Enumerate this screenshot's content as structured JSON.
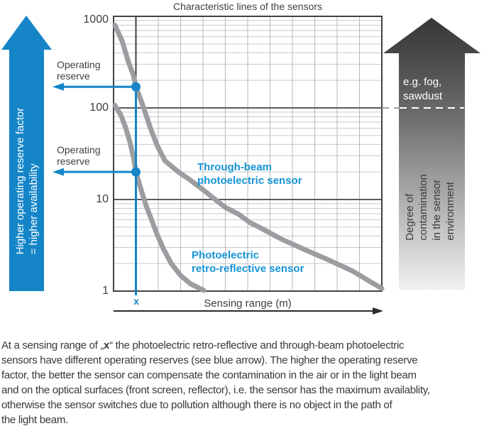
{
  "title": "Characteristic lines of the sensors",
  "colors": {
    "blue": "#1585c8",
    "label_blue": "#1493d6",
    "curve_gray": "#9b9da0",
    "grid_minor": "#c6c9cb",
    "grid_major": "#595c5e",
    "border": "#404346",
    "arrow_dark": "#3a3a3a",
    "arrow_light": "#f0f0f0"
  },
  "left_arrow": {
    "label": "Higher operating reserve factor\n= higher availability"
  },
  "right_arrow": {
    "example_label": "e.g. fog,\nsawdust",
    "label": "Degree of contamination\nin the sensor environment"
  },
  "plot": {
    "y_ticks": [
      "1000",
      "100",
      "10",
      "1"
    ],
    "x_axis_label": "Sensing range (m)",
    "x_marker_label": "x",
    "operating_reserve_label": "Operating reserve",
    "series_labels": {
      "through_beam": "Through-beam\nphotoelectric sensor",
      "retro_reflective": "Photoelectric\nretro-reflective sensor"
    }
  },
  "chart_data": {
    "type": "line",
    "title": "Characteristic lines of the sensors",
    "xlabel": "Sensing range (m)",
    "ylabel": "Operating reserve factor",
    "x_range": [
      0,
      12
    ],
    "y_scale": "log",
    "y_range": [
      1,
      1000
    ],
    "y_ticks": [
      1,
      10,
      100,
      1000
    ],
    "grid": true,
    "legend_position": "inline-labels",
    "series": [
      {
        "name": "Through-beam photoelectric sensor",
        "points": [
          [
            0.06,
            800
          ],
          [
            0.38,
            540
          ],
          [
            0.67,
            315
          ],
          [
            0.89,
            227
          ],
          [
            1.0,
            170
          ],
          [
            1.35,
            100
          ],
          [
            1.65,
            60
          ],
          [
            1.95,
            39
          ],
          [
            2.3,
            26.5
          ],
          [
            2.9,
            20
          ],
          [
            3.4,
            16.5
          ],
          [
            4.0,
            12.8
          ],
          [
            4.5,
            10.2
          ],
          [
            5.0,
            8.2
          ],
          [
            5.6,
            6.9
          ],
          [
            6.1,
            5.6
          ],
          [
            6.5,
            5.0
          ],
          [
            7.5,
            3.7
          ],
          [
            8.6,
            2.8
          ],
          [
            9.6,
            2.2
          ],
          [
            10.7,
            1.65
          ],
          [
            11.5,
            1.26
          ],
          [
            12.0,
            1.07
          ]
        ]
      },
      {
        "name": "Photoelectric retro-reflective sensor",
        "points": [
          [
            0.06,
            107
          ],
          [
            0.32,
            84
          ],
          [
            0.54,
            61
          ],
          [
            0.73,
            42.5
          ],
          [
            0.89,
            29
          ],
          [
            1.0,
            20
          ],
          [
            1.24,
            12.6
          ],
          [
            1.46,
            8.5
          ],
          [
            1.7,
            6.0
          ],
          [
            1.94,
            4.2
          ],
          [
            2.23,
            2.9
          ],
          [
            2.58,
            2.0
          ],
          [
            3.0,
            1.48
          ],
          [
            3.44,
            1.2
          ],
          [
            4.03,
            1.02
          ]
        ]
      }
    ],
    "marker": {
      "x": 1,
      "label": "x",
      "through_beam_y": 170,
      "retro_reflective_y": 20,
      "annotation": "Operating reserve"
    },
    "contamination_threshold_y": 100
  },
  "caption": {
    "prefix": "At a sensing range of „",
    "highlight": "x",
    "suffix": "“ the photoelectric retro-reflective and through-beam photoelectric\nsensors have different operating reserves (see blue arrow). The higher the operating reserve\nfactor, the better the sensor can compensate the contamination in the air or in the light beam\nand on the optical surfaces (front screen, reflector), i.e. the sensor has the maximum availablity,\notherwise the sensor switches due to pollution although there is no object in the path of\nthe light beam."
  }
}
